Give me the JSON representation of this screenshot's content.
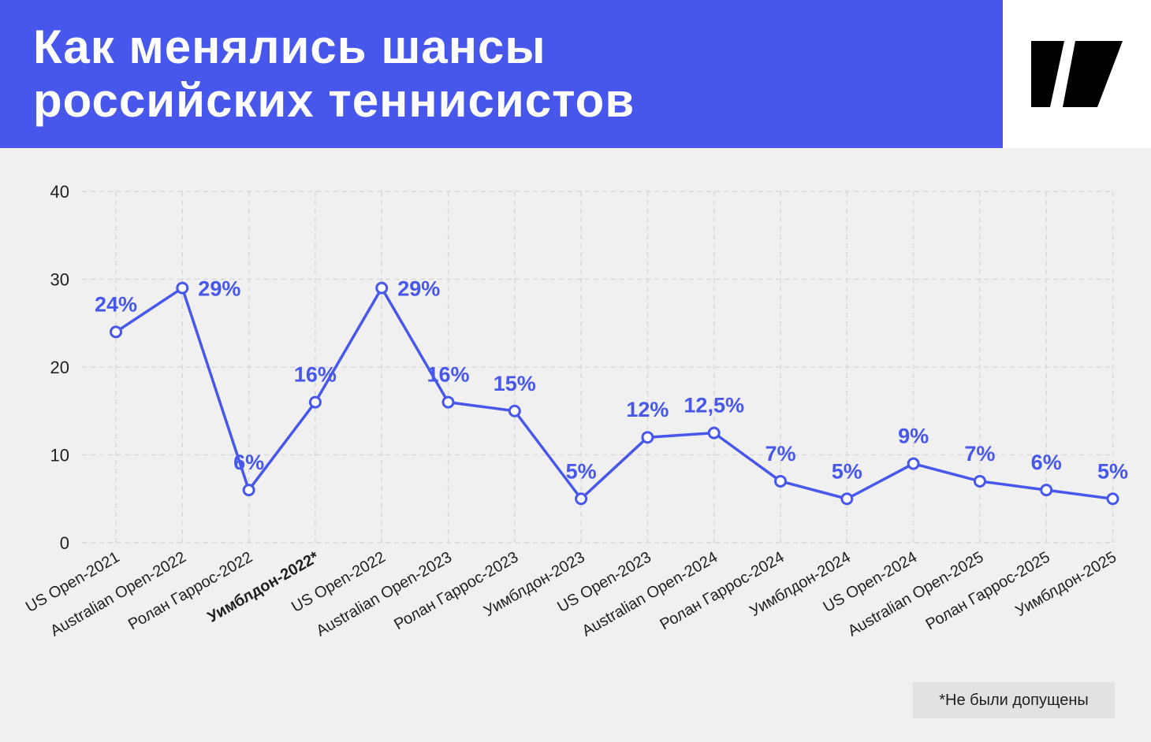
{
  "header": {
    "title_line1": "Как менялись шансы",
    "title_line2": "российских теннисистов"
  },
  "footnote": "*Не были допущены",
  "colors": {
    "accent": "#4757ec",
    "background": "#f0f0f0",
    "grid": "#d8d8d8",
    "text": "#1f1f1f"
  },
  "logo": {
    "icon": "meduza-logo-icon"
  },
  "chart_data": {
    "type": "line",
    "title": "",
    "xlabel": "",
    "ylabel": "",
    "ylim": [
      0,
      40
    ],
    "yticks": [
      0,
      10,
      20,
      30,
      40
    ],
    "grid": true,
    "categories": [
      "US Open-2021",
      "Australian Open-2022",
      "Ролан Гаррос-2022",
      "Уимблдон-2022*",
      "US Open-2022",
      "Australian Open-2023",
      "Ролан Гаррос-2023",
      "Уимблдон-2023",
      "US Open-2023",
      "Australian Open-2024",
      "Ролан Гаррос-2024",
      "Уимблдон-2024",
      "US Open-2024",
      "Australian Open-2025",
      "Ролан Гаррос-2025",
      "Уимблдон-2025"
    ],
    "highlighted_categories": [
      "Уимблдон-2022*"
    ],
    "values": [
      24,
      29,
      6,
      16,
      29,
      16,
      15,
      5,
      12,
      12.5,
      7,
      5,
      9,
      7,
      6,
      5
    ],
    "data_labels": [
      "24%",
      "29%",
      "6%",
      "16%",
      "29%",
      "16%",
      "15%",
      "5%",
      "12%",
      "12,5%",
      "7%",
      "5%",
      "9%",
      "7%",
      "6%",
      "5%"
    ]
  }
}
